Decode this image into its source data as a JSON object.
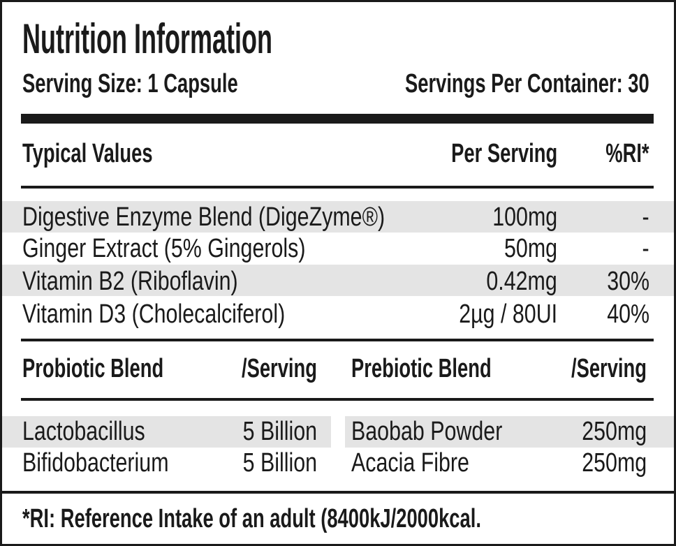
{
  "header": {
    "title": "Nutrition Information",
    "serving_size": "Serving Size: 1 Capsule",
    "servings_per_container": "Servings Per Container: 30"
  },
  "table": {
    "columns": [
      "Typical Values",
      "Per Serving",
      "%RI*"
    ],
    "rows": [
      [
        "Digestive Enzyme Blend (DigeZyme®)",
        "100mg",
        "-"
      ],
      [
        "Ginger Extract (5% Gingerols)",
        "50mg",
        "-"
      ],
      [
        "Vitamin B2 (Riboflavin)",
        "0.42mg",
        "30%"
      ],
      [
        "Vitamin D3 (Cholecalciferol)",
        "2µg / 80UI",
        "40%"
      ]
    ]
  },
  "probiotic": {
    "columns": [
      "Probiotic Blend",
      "/Serving"
    ],
    "rows": [
      [
        "Lactobacillus",
        "5 Billion"
      ],
      [
        "Bifidobacterium",
        "5 Billion"
      ]
    ]
  },
  "prebiotic": {
    "columns": [
      "Prebiotic Blend",
      "/Serving"
    ],
    "rows": [
      [
        "Baobab Powder",
        "250mg"
      ],
      [
        "Acacia Fibre",
        "250mg"
      ]
    ]
  },
  "footnote": "*RI: Reference Intake of an adult (8400kJ/2000kcal."
}
